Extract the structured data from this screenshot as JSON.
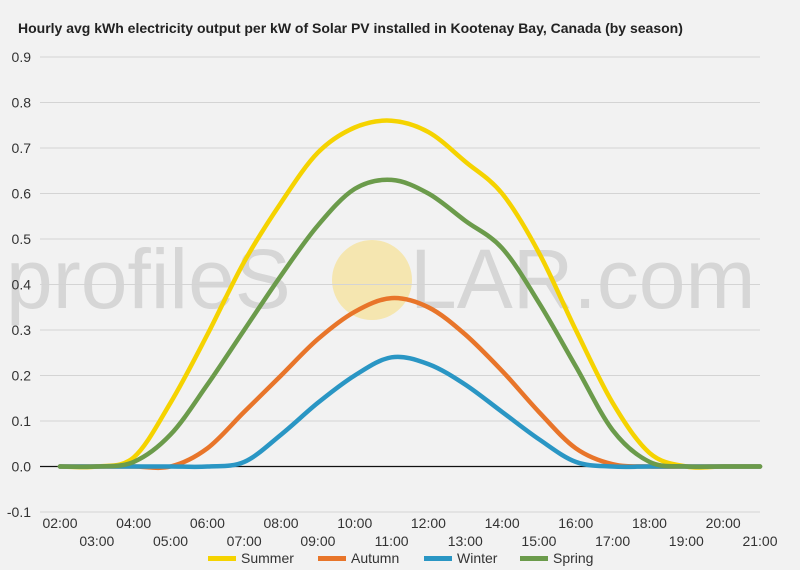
{
  "watermark": {
    "left": "profileS",
    "right": "LAR.com",
    "sun_color": "#f5e6b0"
  },
  "chart_data": {
    "type": "line",
    "title": "Hourly avg kWh electricity output per kW of Solar PV installed in Kootenay Bay, Canada (by season)",
    "xlabel": "",
    "ylabel": "",
    "ylim": [
      -0.1,
      0.9
    ],
    "xlim": [
      2,
      21
    ],
    "y_ticks": [
      "0.9",
      "0.8",
      "0.7",
      "0.6",
      "0.5",
      "0.4",
      "0.3",
      "0.2",
      "0.1",
      "0.0",
      "-0.1"
    ],
    "y_tick_values": [
      0.9,
      0.8,
      0.7,
      0.6,
      0.5,
      0.4,
      0.3,
      0.2,
      0.1,
      0.0,
      -0.1
    ],
    "x_ticks_upper": [
      "02:00",
      "04:00",
      "06:00",
      "08:00",
      "10:00",
      "12:00",
      "14:00",
      "16:00",
      "18:00",
      "20:00"
    ],
    "x_ticks_upper_values": [
      2,
      4,
      6,
      8,
      10,
      12,
      14,
      16,
      18,
      20
    ],
    "x_ticks_lower": [
      "03:00",
      "05:00",
      "07:00",
      "09:00",
      "11:00",
      "13:00",
      "15:00",
      "17:00",
      "19:00",
      "21:00"
    ],
    "x_ticks_lower_values": [
      3,
      5,
      7,
      9,
      11,
      13,
      15,
      17,
      19,
      21
    ],
    "grid": true,
    "legend_position": "bottom",
    "series": [
      {
        "name": "Summer",
        "color": "#f5d300",
        "x": [
          2,
          3,
          4,
          5,
          6,
          7,
          8,
          9,
          10,
          11,
          12,
          13,
          14,
          15,
          16,
          17,
          18,
          19,
          20,
          21
        ],
        "y": [
          0.0,
          0.0,
          0.02,
          0.14,
          0.29,
          0.45,
          0.58,
          0.69,
          0.745,
          0.76,
          0.735,
          0.67,
          0.6,
          0.47,
          0.3,
          0.14,
          0.03,
          0.0,
          0.0,
          0.0
        ]
      },
      {
        "name": "Autumn",
        "color": "#e8752a",
        "x": [
          2,
          3,
          4,
          5,
          6,
          7,
          8,
          9,
          10,
          11,
          12,
          13,
          14,
          15,
          16,
          17,
          18,
          19,
          20,
          21
        ],
        "y": [
          0.0,
          0.0,
          0.0,
          0.0,
          0.04,
          0.12,
          0.2,
          0.28,
          0.34,
          0.37,
          0.35,
          0.29,
          0.21,
          0.12,
          0.04,
          0.005,
          0.0,
          0.0,
          0.0,
          0.0
        ]
      },
      {
        "name": "Winter",
        "color": "#2a96c4",
        "x": [
          2,
          3,
          4,
          5,
          6,
          7,
          8,
          9,
          10,
          11,
          12,
          13,
          14,
          15,
          16,
          17,
          18,
          19,
          20,
          21
        ],
        "y": [
          0.0,
          0.0,
          0.0,
          0.0,
          0.0,
          0.01,
          0.07,
          0.14,
          0.2,
          0.24,
          0.225,
          0.18,
          0.12,
          0.06,
          0.01,
          0.0,
          0.0,
          0.0,
          0.0,
          0.0
        ]
      },
      {
        "name": "Spring",
        "color": "#6b9b4b",
        "x": [
          2,
          3,
          4,
          5,
          6,
          7,
          8,
          9,
          10,
          11,
          12,
          13,
          14,
          15,
          16,
          17,
          18,
          19,
          20,
          21
        ],
        "y": [
          0.0,
          0.0,
          0.01,
          0.07,
          0.18,
          0.3,
          0.42,
          0.53,
          0.61,
          0.63,
          0.6,
          0.54,
          0.48,
          0.36,
          0.22,
          0.08,
          0.01,
          0.0,
          0.0,
          0.0
        ]
      }
    ]
  }
}
